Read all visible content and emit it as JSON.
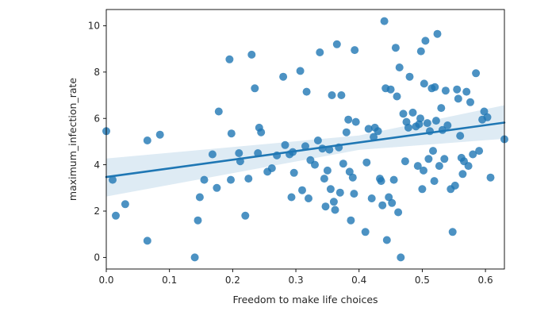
{
  "chart_data": {
    "type": "scatter",
    "title": "",
    "xlabel": "Freedom to make life choices",
    "ylabel": "maximum_infection_rate",
    "xlim": [
      0.0,
      0.63
    ],
    "ylim": [
      -0.5,
      10.7
    ],
    "xticks": [
      0.0,
      0.1,
      0.2,
      0.3,
      0.4,
      0.5,
      0.6
    ],
    "xtick_labels": [
      "0.0",
      "0.1",
      "0.2",
      "0.3",
      "0.4",
      "0.5",
      "0.6"
    ],
    "yticks": [
      0,
      2,
      4,
      6,
      8,
      10
    ],
    "ytick_labels": [
      "0",
      "2",
      "4",
      "6",
      "8",
      "10"
    ],
    "grid": false,
    "point_color": "#1f77b4",
    "regression": {
      "x": [
        0.0,
        0.63
      ],
      "y": [
        3.47,
        5.82
      ],
      "ci_lower": [
        2.63,
        5.12
      ],
      "ci_upper": [
        4.27,
        6.57
      ],
      "ci_mid_x": 0.4,
      "ci_mid": [
        4.64,
        5.26
      ]
    },
    "points": [
      [
        0.0,
        5.45
      ],
      [
        0.01,
        3.35
      ],
      [
        0.015,
        1.8
      ],
      [
        0.03,
        2.3
      ],
      [
        0.065,
        5.05
      ],
      [
        0.065,
        0.72
      ],
      [
        0.085,
        5.3
      ],
      [
        0.14,
        0.0
      ],
      [
        0.145,
        1.6
      ],
      [
        0.148,
        2.6
      ],
      [
        0.155,
        3.35
      ],
      [
        0.168,
        4.45
      ],
      [
        0.175,
        3.0
      ],
      [
        0.178,
        6.3
      ],
      [
        0.195,
        8.55
      ],
      [
        0.197,
        3.35
      ],
      [
        0.198,
        5.35
      ],
      [
        0.21,
        4.5
      ],
      [
        0.212,
        4.15
      ],
      [
        0.22,
        1.8
      ],
      [
        0.225,
        3.4
      ],
      [
        0.23,
        8.75
      ],
      [
        0.235,
        7.3
      ],
      [
        0.24,
        4.5
      ],
      [
        0.242,
        5.6
      ],
      [
        0.245,
        5.4
      ],
      [
        0.255,
        3.7
      ],
      [
        0.262,
        3.85
      ],
      [
        0.27,
        4.4
      ],
      [
        0.28,
        7.8
      ],
      [
        0.283,
        4.85
      ],
      [
        0.29,
        4.45
      ],
      [
        0.293,
        2.6
      ],
      [
        0.295,
        4.55
      ],
      [
        0.297,
        3.65
      ],
      [
        0.307,
        8.05
      ],
      [
        0.31,
        2.9
      ],
      [
        0.315,
        4.8
      ],
      [
        0.317,
        7.15
      ],
      [
        0.32,
        2.55
      ],
      [
        0.323,
        4.2
      ],
      [
        0.33,
        4.0
      ],
      [
        0.335,
        5.05
      ],
      [
        0.338,
        8.85
      ],
      [
        0.342,
        4.7
      ],
      [
        0.345,
        3.4
      ],
      [
        0.347,
        2.2
      ],
      [
        0.35,
        3.75
      ],
      [
        0.353,
        4.65
      ],
      [
        0.355,
        2.95
      ],
      [
        0.357,
        7.0
      ],
      [
        0.36,
        2.4
      ],
      [
        0.362,
        2.05
      ],
      [
        0.365,
        9.2
      ],
      [
        0.368,
        4.75
      ],
      [
        0.37,
        2.8
      ],
      [
        0.372,
        7.0
      ],
      [
        0.375,
        4.05
      ],
      [
        0.38,
        5.4
      ],
      [
        0.383,
        5.95
      ],
      [
        0.385,
        3.7
      ],
      [
        0.387,
        1.6
      ],
      [
        0.39,
        3.45
      ],
      [
        0.392,
        2.75
      ],
      [
        0.393,
        8.95
      ],
      [
        0.395,
        5.85
      ],
      [
        0.41,
        1.1
      ],
      [
        0.412,
        4.1
      ],
      [
        0.415,
        5.55
      ],
      [
        0.42,
        2.55
      ],
      [
        0.423,
        5.2
      ],
      [
        0.425,
        5.6
      ],
      [
        0.43,
        5.45
      ],
      [
        0.433,
        3.4
      ],
      [
        0.435,
        3.3
      ],
      [
        0.437,
        2.25
      ],
      [
        0.44,
        10.2
      ],
      [
        0.442,
        7.3
      ],
      [
        0.444,
        0.75
      ],
      [
        0.447,
        2.6
      ],
      [
        0.45,
        7.25
      ],
      [
        0.452,
        2.35
      ],
      [
        0.455,
        3.35
      ],
      [
        0.458,
        9.05
      ],
      [
        0.46,
        6.95
      ],
      [
        0.462,
        1.95
      ],
      [
        0.464,
        8.2
      ],
      [
        0.466,
        0.0
      ],
      [
        0.47,
        6.2
      ],
      [
        0.473,
        4.15
      ],
      [
        0.475,
        5.85
      ],
      [
        0.478,
        5.6
      ],
      [
        0.48,
        7.8
      ],
      [
        0.485,
        6.25
      ],
      [
        0.49,
        5.65
      ],
      [
        0.493,
        3.95
      ],
      [
        0.495,
        5.75
      ],
      [
        0.497,
        6.0
      ],
      [
        0.498,
        8.9
      ],
      [
        0.5,
        2.95
      ],
      [
        0.502,
        3.75
      ],
      [
        0.503,
        7.5
      ],
      [
        0.505,
        9.35
      ],
      [
        0.508,
        5.8
      ],
      [
        0.51,
        4.25
      ],
      [
        0.512,
        5.45
      ],
      [
        0.515,
        7.3
      ],
      [
        0.517,
        4.6
      ],
      [
        0.519,
        3.3
      ],
      [
        0.52,
        7.35
      ],
      [
        0.522,
        5.9
      ],
      [
        0.524,
        9.65
      ],
      [
        0.527,
        3.95
      ],
      [
        0.53,
        6.45
      ],
      [
        0.532,
        5.5
      ],
      [
        0.535,
        4.25
      ],
      [
        0.537,
        7.2
      ],
      [
        0.54,
        5.7
      ],
      [
        0.545,
        2.95
      ],
      [
        0.548,
        1.1
      ],
      [
        0.552,
        3.1
      ],
      [
        0.555,
        7.25
      ],
      [
        0.557,
        6.85
      ],
      [
        0.56,
        5.25
      ],
      [
        0.562,
        4.3
      ],
      [
        0.564,
        3.6
      ],
      [
        0.566,
        4.15
      ],
      [
        0.57,
        7.15
      ],
      [
        0.573,
        3.95
      ],
      [
        0.576,
        6.7
      ],
      [
        0.58,
        4.45
      ],
      [
        0.585,
        7.95
      ],
      [
        0.59,
        4.6
      ],
      [
        0.595,
        5.95
      ],
      [
        0.598,
        6.3
      ],
      [
        0.603,
        6.05
      ],
      [
        0.608,
        3.45
      ],
      [
        0.63,
        5.1
      ]
    ]
  }
}
